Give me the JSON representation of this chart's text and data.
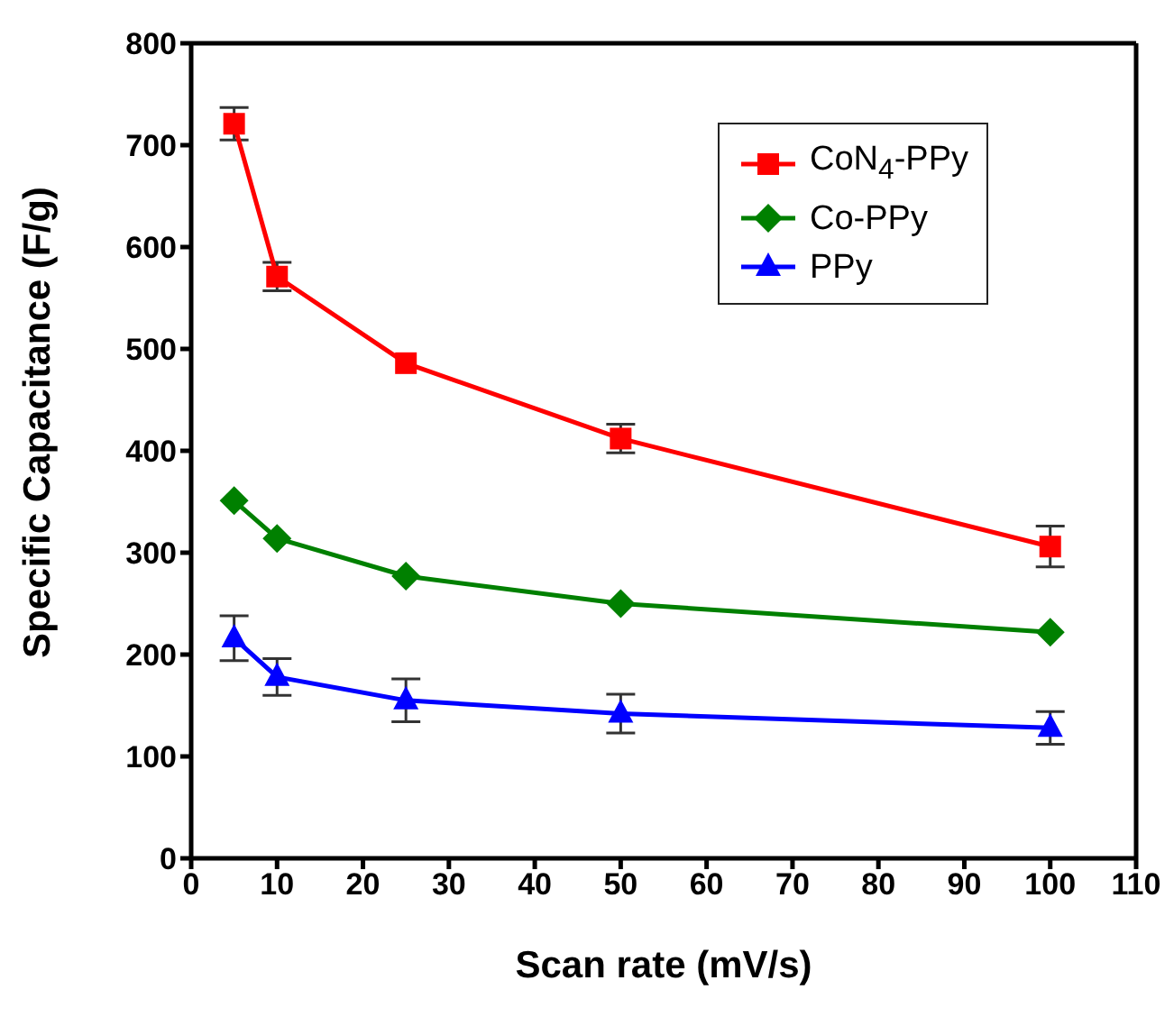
{
  "chart_data": {
    "type": "line",
    "xlabel": "Scan rate (mV/s)",
    "ylabel": "Specific Capacitance (F/g)",
    "x": [
      5,
      10,
      25,
      50,
      100
    ],
    "series": [
      {
        "name": "CoN$_{4}$-PPy",
        "color": "#ff0000",
        "marker": "square",
        "values": [
          721,
          571,
          486,
          412,
          306
        ],
        "errors": [
          16,
          14,
          null,
          14,
          20
        ]
      },
      {
        "name": "Co-PPy",
        "color": "#008000",
        "marker": "diamond",
        "values": [
          351,
          314,
          277,
          250,
          222
        ]
      },
      {
        "name": "PPy",
        "color": "#0000ff",
        "marker": "triangle",
        "values": [
          216,
          178,
          155,
          142,
          128
        ],
        "errors": [
          22,
          18,
          21,
          19,
          16
        ]
      }
    ],
    "xlim": [
      0,
      110
    ],
    "xticks": [
      0,
      10,
      20,
      30,
      40,
      50,
      60,
      70,
      80,
      90,
      100,
      110
    ],
    "ylim": [
      0,
      800
    ],
    "yticks": [
      0,
      100,
      200,
      300,
      400,
      500,
      600,
      700,
      800
    ],
    "grid": false,
    "legend": "top right"
  }
}
